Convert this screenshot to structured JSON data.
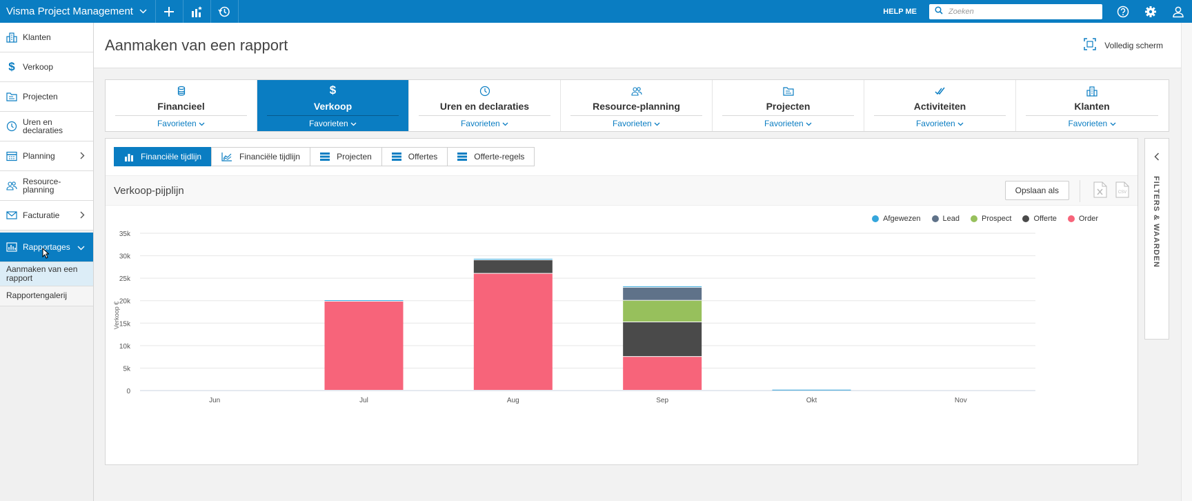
{
  "topbar": {
    "app_title": "Visma Project Management",
    "help_label": "HELP ME",
    "search_placeholder": "Zoeken",
    "bg_color": "#0a7dc2"
  },
  "sidebar": {
    "items": [
      {
        "label": "Klanten",
        "icon": "building-icon"
      },
      {
        "label": "Verkoop",
        "icon": "dollar-icon"
      },
      {
        "label": "Projecten",
        "icon": "folder-icon"
      },
      {
        "label": "Uren en declaraties",
        "icon": "clock-icon"
      },
      {
        "label": "Planning",
        "icon": "calendar-icon"
      },
      {
        "label": "Resource-planning",
        "icon": "people-icon"
      },
      {
        "label": "Facturatie",
        "icon": "invoice-icon"
      },
      {
        "label": "Rapportages",
        "icon": "report-icon"
      }
    ],
    "sub_items": [
      {
        "label": "Aanmaken van een rapport"
      },
      {
        "label": "Rapportengalerij"
      }
    ]
  },
  "header": {
    "title": "Aanmaken van een rapport",
    "fullscreen_label": "Volledig scherm"
  },
  "category_tabs": [
    {
      "label": "Financieel",
      "fav": "Favorieten"
    },
    {
      "label": "Verkoop",
      "fav": "Favorieten"
    },
    {
      "label": "Uren en declaraties",
      "fav": "Favorieten"
    },
    {
      "label": "Resource-planning",
      "fav": "Favorieten"
    },
    {
      "label": "Projecten",
      "fav": "Favorieten"
    },
    {
      "label": "Activiteiten",
      "fav": "Favorieten"
    },
    {
      "label": "Klanten",
      "fav": "Favorieten"
    }
  ],
  "report_tabs": [
    {
      "label": "Financiële tijdlijn"
    },
    {
      "label": "Financiële tijdlijn"
    },
    {
      "label": "Projecten"
    },
    {
      "label": "Offertes"
    },
    {
      "label": "Offerte-regels"
    }
  ],
  "report": {
    "title": "Verkoop-pijplijn",
    "save_label": "Opslaan als"
  },
  "filter_panel": {
    "label": "FILTERS & WAARDEN"
  },
  "chart_data": {
    "type": "bar",
    "stacked": true,
    "categories": [
      "Jun",
      "Jul",
      "Aug",
      "Sep",
      "Okt",
      "Nov"
    ],
    "series": [
      {
        "name": "Order",
        "color": "#f7647a",
        "values": [
          0,
          19800,
          26000,
          7500,
          0,
          0
        ]
      },
      {
        "name": "Offerte",
        "color": "#4a4a4a",
        "values": [
          0,
          0,
          3000,
          7700,
          0,
          0
        ]
      },
      {
        "name": "Prospect",
        "color": "#97c05c",
        "values": [
          0,
          0,
          0,
          4800,
          0,
          0
        ]
      },
      {
        "name": "Lead",
        "color": "#5f7289",
        "values": [
          0,
          0,
          0,
          2900,
          0,
          0
        ]
      },
      {
        "name": "Afgewezen",
        "color": "#35a6dc",
        "values": [
          0,
          300,
          300,
          300,
          200,
          0
        ]
      }
    ],
    "legend_order": [
      "Afgewezen",
      "Lead",
      "Prospect",
      "Offerte",
      "Order"
    ],
    "y_ticks": [
      "0",
      "5k",
      "10k",
      "15k",
      "20k",
      "25k",
      "30k",
      "35k"
    ],
    "ylabel": "Verkoop €",
    "ylim": [
      0,
      35000
    ],
    "grid": true,
    "legend_position": "top-right"
  }
}
